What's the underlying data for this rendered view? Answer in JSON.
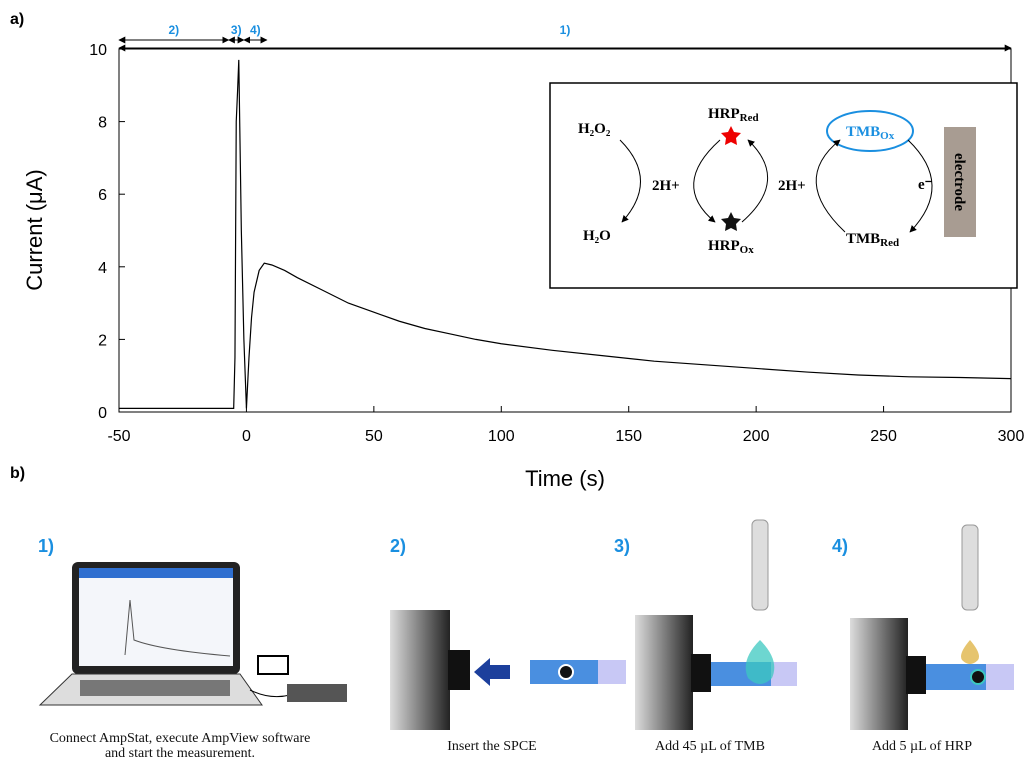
{
  "chart_data": {
    "type": "line",
    "x_label": "Time (s)",
    "y_label": "Current (μA)",
    "x": [
      -50,
      -40,
      -30,
      -20,
      -10,
      -5,
      -4.5,
      -4,
      -3.5,
      -3,
      -2,
      -1,
      0,
      1,
      2,
      3,
      5,
      7,
      10,
      15,
      20,
      30,
      40,
      50,
      60,
      70,
      80,
      90,
      100,
      120,
      140,
      160,
      180,
      200,
      220,
      240,
      260,
      280,
      300
    ],
    "values": [
      0.1,
      0.1,
      0.1,
      0.1,
      0.1,
      0.1,
      1.5,
      8.0,
      8.8,
      9.7,
      5.0,
      2.0,
      0.1,
      1.5,
      2.6,
      3.3,
      3.9,
      4.1,
      4.05,
      3.9,
      3.7,
      3.35,
      3.0,
      2.75,
      2.5,
      2.3,
      2.15,
      2.0,
      1.88,
      1.7,
      1.55,
      1.4,
      1.3,
      1.2,
      1.1,
      1.02,
      0.97,
      0.95,
      0.92
    ],
    "color": "#000000",
    "xlim": [
      -50,
      300
    ],
    "xticks": [
      -50,
      0,
      50,
      100,
      150,
      200,
      250,
      300
    ],
    "ylim": [
      0,
      10
    ],
    "yticks": [
      0,
      2,
      4,
      6,
      8,
      10
    ],
    "phases": [
      {
        "label": "2)",
        "x": [
          -50,
          -7
        ]
      },
      {
        "label": "3)",
        "x": [
          -7,
          -1
        ]
      },
      {
        "label": "4)",
        "x": [
          -1,
          8
        ]
      },
      {
        "label": "1)",
        "x": [
          -50,
          300
        ]
      }
    ]
  },
  "panel_labels": [
    "a)",
    "b)"
  ],
  "inset": {
    "h2o2": "H₂O₂",
    "h2o": "H₂O",
    "proton_left": "2H+",
    "proton_right": "2H+",
    "hrp_red": {
      "main": "HRP",
      "sub": "Red"
    },
    "hrp_ox": {
      "main": "HRP",
      "sub": "Ox"
    },
    "tmb_ox": {
      "main": "TMB",
      "sub": "Ox"
    },
    "tmb_red": {
      "main": "TMB",
      "sub": "Red"
    },
    "electron": "e⁻",
    "electrode": "electrode"
  },
  "steps": [
    {
      "number": "1)",
      "caption": [
        "Connect AmpStat, execute AmpView software",
        "and start the measurement."
      ]
    },
    {
      "number": "2)",
      "caption": [
        "Insert the SPCE"
      ]
    },
    {
      "number": "3)",
      "caption": [
        "Add 45 µL of TMB"
      ]
    },
    {
      "number": "4)",
      "caption": [
        "Add 5 µL of HRP"
      ]
    }
  ]
}
